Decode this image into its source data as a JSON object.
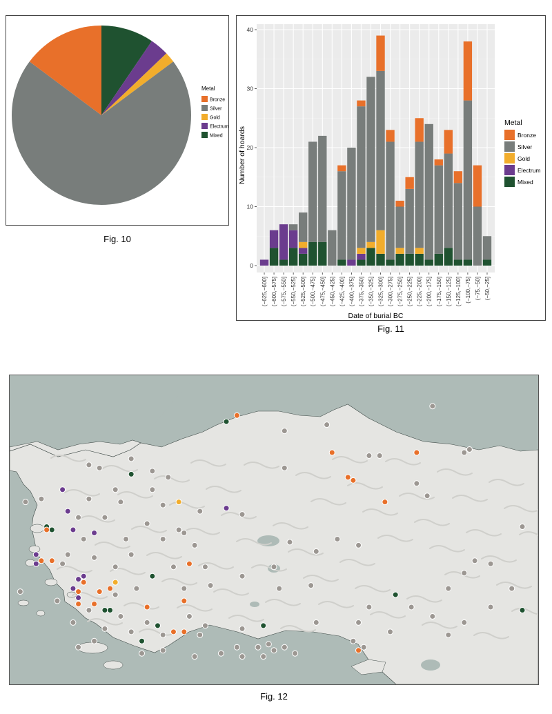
{
  "fig10": {
    "caption": "Fig. 10",
    "chart_data": {
      "type": "pie",
      "title": "",
      "legend_title": "Metal",
      "legend_position": "right",
      "slices": [
        {
          "label": "Mixed",
          "value": 9.5,
          "color": "#1f5230"
        },
        {
          "label": "Electrum",
          "value": 3.4,
          "color": "#6b3c8e"
        },
        {
          "label": "Gold",
          "value": 1.9,
          "color": "#f2ad2c"
        },
        {
          "label": "Silver",
          "value": 70.4,
          "color": "#787d7b"
        },
        {
          "label": "Bronze",
          "value": 14.8,
          "color": "#e8702a"
        }
      ],
      "legend_entries": [
        "Bronze",
        "Silver",
        "Gold",
        "Electrum",
        "Mixed"
      ]
    }
  },
  "fig11": {
    "caption": "Fig. 11",
    "chart_data": {
      "type": "bar",
      "stacked": true,
      "xlabel": "Date of burial BC",
      "ylabel": "Number of hoards",
      "ylim": [
        0,
        40
      ],
      "yticks": [
        0,
        10,
        20,
        30,
        40
      ],
      "grid": true,
      "legend_title": "Metal",
      "legend_position": "right",
      "categories": [
        "(−625,−600]",
        "(−600,−575]",
        "(−575,−550]",
        "(−550,−525]",
        "(−525,−500]",
        "(−500,−475]",
        "(−475,−450]",
        "(−450,−425]",
        "(−425,−400]",
        "(−400,−375]",
        "(−375,−350]",
        "(−350,−325]",
        "(−325,−300]",
        "(−300,−275]",
        "(−275,−250]",
        "(−250,−225]",
        "(−225,−200]",
        "(−200,−175]",
        "(−175,−150]",
        "(−150,−125]",
        "(−125,−100]",
        "(−100,−75]",
        "(−75,−50]",
        "(−50,−25]"
      ],
      "series": [
        {
          "name": "Mixed",
          "color": "#1f5230",
          "values": [
            0,
            3,
            1,
            3,
            2,
            4,
            4,
            0,
            1,
            0,
            1,
            3,
            2,
            1,
            2,
            2,
            2,
            1,
            2,
            3,
            1,
            1,
            0,
            1
          ]
        },
        {
          "name": "Electrum",
          "color": "#6b3c8e",
          "values": [
            1,
            3,
            6,
            3,
            1,
            0,
            0,
            0,
            0,
            1,
            1,
            0,
            0,
            0,
            0,
            0,
            0,
            0,
            0,
            0,
            0,
            0,
            0,
            0
          ]
        },
        {
          "name": "Gold",
          "color": "#f2ad2c",
          "values": [
            0,
            0,
            0,
            0,
            1,
            0,
            0,
            0,
            0,
            0,
            1,
            1,
            4,
            0,
            1,
            0,
            1,
            0,
            0,
            0,
            0,
            0,
            0,
            0
          ]
        },
        {
          "name": "Silver",
          "color": "#787d7b",
          "values": [
            0,
            0,
            0,
            1,
            5,
            17,
            18,
            6,
            15,
            19,
            24,
            28,
            27,
            20,
            7,
            11,
            18,
            23,
            15,
            16,
            13,
            27,
            10,
            4
          ]
        },
        {
          "name": "Bronze",
          "color": "#e8702a",
          "values": [
            0,
            0,
            0,
            0,
            0,
            0,
            0,
            0,
            1,
            0,
            1,
            0,
            6,
            2,
            1,
            2,
            4,
            0,
            1,
            4,
            2,
            10,
            7,
            0
          ]
        }
      ],
      "legend_entries": [
        "Bronze",
        "Silver",
        "Gold",
        "Electrum",
        "Mixed"
      ]
    }
  },
  "fig12": {
    "caption": "Fig. 12",
    "type": "map",
    "colors": {
      "sea": "#aebbb7",
      "land": "#e5e5e2",
      "lake": "#aebbb7",
      "relief": "#cfcfcb"
    },
    "points": [
      {
        "lon": 0.8,
        "lat": 0.1,
        "metal": "Silver"
      },
      {
        "lon": 0.43,
        "lat": 0.13,
        "metal": "Bronze"
      },
      {
        "lon": 0.41,
        "lat": 0.15,
        "metal": "Mixed"
      },
      {
        "lon": 0.61,
        "lat": 0.25,
        "metal": "Bronze"
      },
      {
        "lon": 0.77,
        "lat": 0.25,
        "metal": "Bronze"
      },
      {
        "lon": 0.64,
        "lat": 0.33,
        "metal": "Bronze"
      },
      {
        "lon": 0.65,
        "lat": 0.34,
        "metal": "Bronze"
      },
      {
        "lon": 0.71,
        "lat": 0.41,
        "metal": "Bronze"
      },
      {
        "lon": 0.32,
        "lat": 0.41,
        "metal": "Gold"
      },
      {
        "lon": 0.23,
        "lat": 0.32,
        "metal": "Mixed"
      },
      {
        "lon": 0.1,
        "lat": 0.37,
        "metal": "Electrum"
      },
      {
        "lon": 0.41,
        "lat": 0.43,
        "metal": "Electrum"
      },
      {
        "lon": 0.11,
        "lat": 0.44,
        "metal": "Electrum"
      },
      {
        "lon": 0.07,
        "lat": 0.49,
        "metal": "Mixed"
      },
      {
        "lon": 0.08,
        "lat": 0.5,
        "metal": "Mixed"
      },
      {
        "lon": 0.07,
        "lat": 0.5,
        "metal": "Bronze"
      },
      {
        "lon": 0.12,
        "lat": 0.5,
        "metal": "Electrum"
      },
      {
        "lon": 0.05,
        "lat": 0.58,
        "metal": "Electrum"
      },
      {
        "lon": 0.06,
        "lat": 0.6,
        "metal": "Bronze"
      },
      {
        "lon": 0.08,
        "lat": 0.6,
        "metal": "Bronze"
      },
      {
        "lon": 0.05,
        "lat": 0.61,
        "metal": "Electrum"
      },
      {
        "lon": 0.16,
        "lat": 0.51,
        "metal": "Electrum"
      },
      {
        "lon": 0.34,
        "lat": 0.61,
        "metal": "Bronze"
      },
      {
        "lon": 0.27,
        "lat": 0.65,
        "metal": "Mixed"
      },
      {
        "lon": 0.13,
        "lat": 0.66,
        "metal": "Electrum"
      },
      {
        "lon": 0.14,
        "lat": 0.65,
        "metal": "Electrum"
      },
      {
        "lon": 0.14,
        "lat": 0.67,
        "metal": "Bronze"
      },
      {
        "lon": 0.12,
        "lat": 0.69,
        "metal": "Electrum"
      },
      {
        "lon": 0.13,
        "lat": 0.7,
        "metal": "Bronze"
      },
      {
        "lon": 0.13,
        "lat": 0.72,
        "metal": "Electrum"
      },
      {
        "lon": 0.13,
        "lat": 0.74,
        "metal": "Bronze"
      },
      {
        "lon": 0.17,
        "lat": 0.7,
        "metal": "Bronze"
      },
      {
        "lon": 0.2,
        "lat": 0.67,
        "metal": "Gold"
      },
      {
        "lon": 0.19,
        "lat": 0.69,
        "metal": "Bronze"
      },
      {
        "lon": 0.16,
        "lat": 0.74,
        "metal": "Bronze"
      },
      {
        "lon": 0.26,
        "lat": 0.75,
        "metal": "Bronze"
      },
      {
        "lon": 0.18,
        "lat": 0.76,
        "metal": "Mixed"
      },
      {
        "lon": 0.19,
        "lat": 0.76,
        "metal": "Mixed"
      },
      {
        "lon": 0.33,
        "lat": 0.73,
        "metal": "Bronze"
      },
      {
        "lon": 0.28,
        "lat": 0.81,
        "metal": "Mixed"
      },
      {
        "lon": 0.31,
        "lat": 0.83,
        "metal": "Bronze"
      },
      {
        "lon": 0.33,
        "lat": 0.83,
        "metal": "Bronze"
      },
      {
        "lon": 0.25,
        "lat": 0.86,
        "metal": "Mixed"
      },
      {
        "lon": 0.48,
        "lat": 0.81,
        "metal": "Mixed"
      },
      {
        "lon": 0.73,
        "lat": 0.71,
        "metal": "Mixed"
      },
      {
        "lon": 0.97,
        "lat": 0.76,
        "metal": "Mixed"
      },
      {
        "lon": 0.66,
        "lat": 0.89,
        "metal": "Bronze"
      },
      {
        "lon": 0.6,
        "lat": 0.16,
        "metal": "Silver"
      },
      {
        "lon": 0.52,
        "lat": 0.18,
        "metal": "Silver"
      },
      {
        "lon": 0.23,
        "lat": 0.27,
        "metal": "Silver"
      },
      {
        "lon": 0.15,
        "lat": 0.29,
        "metal": "Silver"
      },
      {
        "lon": 0.17,
        "lat": 0.3,
        "metal": "Silver"
      },
      {
        "lon": 0.27,
        "lat": 0.31,
        "metal": "Silver"
      },
      {
        "lon": 0.3,
        "lat": 0.33,
        "metal": "Silver"
      },
      {
        "lon": 0.2,
        "lat": 0.37,
        "metal": "Silver"
      },
      {
        "lon": 0.27,
        "lat": 0.37,
        "metal": "Silver"
      },
      {
        "lon": 0.15,
        "lat": 0.4,
        "metal": "Silver"
      },
      {
        "lon": 0.21,
        "lat": 0.41,
        "metal": "Silver"
      },
      {
        "lon": 0.29,
        "lat": 0.42,
        "metal": "Silver"
      },
      {
        "lon": 0.36,
        "lat": 0.44,
        "metal": "Silver"
      },
      {
        "lon": 0.44,
        "lat": 0.45,
        "metal": "Silver"
      },
      {
        "lon": 0.52,
        "lat": 0.3,
        "metal": "Silver"
      },
      {
        "lon": 0.68,
        "lat": 0.26,
        "metal": "Silver"
      },
      {
        "lon": 0.7,
        "lat": 0.26,
        "metal": "Silver"
      },
      {
        "lon": 0.86,
        "lat": 0.25,
        "metal": "Silver"
      },
      {
        "lon": 0.87,
        "lat": 0.24,
        "metal": "Silver"
      },
      {
        "lon": 0.79,
        "lat": 0.39,
        "metal": "Silver"
      },
      {
        "lon": 0.97,
        "lat": 0.49,
        "metal": "Silver"
      },
      {
        "lon": 0.13,
        "lat": 0.46,
        "metal": "Silver"
      },
      {
        "lon": 0.18,
        "lat": 0.46,
        "metal": "Silver"
      },
      {
        "lon": 0.26,
        "lat": 0.48,
        "metal": "Silver"
      },
      {
        "lon": 0.32,
        "lat": 0.5,
        "metal": "Silver"
      },
      {
        "lon": 0.33,
        "lat": 0.51,
        "metal": "Silver"
      },
      {
        "lon": 0.14,
        "lat": 0.53,
        "metal": "Silver"
      },
      {
        "lon": 0.22,
        "lat": 0.53,
        "metal": "Silver"
      },
      {
        "lon": 0.29,
        "lat": 0.53,
        "metal": "Silver"
      },
      {
        "lon": 0.35,
        "lat": 0.55,
        "metal": "Silver"
      },
      {
        "lon": 0.53,
        "lat": 0.54,
        "metal": "Silver"
      },
      {
        "lon": 0.62,
        "lat": 0.53,
        "metal": "Silver"
      },
      {
        "lon": 0.58,
        "lat": 0.57,
        "metal": "Silver"
      },
      {
        "lon": 0.66,
        "lat": 0.55,
        "metal": "Silver"
      },
      {
        "lon": 0.23,
        "lat": 0.58,
        "metal": "Silver"
      },
      {
        "lon": 0.16,
        "lat": 0.59,
        "metal": "Silver"
      },
      {
        "lon": 0.11,
        "lat": 0.58,
        "metal": "Silver"
      },
      {
        "lon": 0.1,
        "lat": 0.61,
        "metal": "Silver"
      },
      {
        "lon": 0.2,
        "lat": 0.62,
        "metal": "Silver"
      },
      {
        "lon": 0.31,
        "lat": 0.62,
        "metal": "Silver"
      },
      {
        "lon": 0.37,
        "lat": 0.62,
        "metal": "Silver"
      },
      {
        "lon": 0.44,
        "lat": 0.65,
        "metal": "Silver"
      },
      {
        "lon": 0.5,
        "lat": 0.62,
        "metal": "Silver"
      },
      {
        "lon": 0.38,
        "lat": 0.68,
        "metal": "Silver"
      },
      {
        "lon": 0.33,
        "lat": 0.69,
        "metal": "Silver"
      },
      {
        "lon": 0.24,
        "lat": 0.69,
        "metal": "Silver"
      },
      {
        "lon": 0.2,
        "lat": 0.71,
        "metal": "Silver"
      },
      {
        "lon": 0.51,
        "lat": 0.69,
        "metal": "Silver"
      },
      {
        "lon": 0.57,
        "lat": 0.68,
        "metal": "Silver"
      },
      {
        "lon": 0.83,
        "lat": 0.69,
        "metal": "Silver"
      },
      {
        "lon": 0.95,
        "lat": 0.69,
        "metal": "Silver"
      },
      {
        "lon": 0.68,
        "lat": 0.75,
        "metal": "Silver"
      },
      {
        "lon": 0.76,
        "lat": 0.75,
        "metal": "Silver"
      },
      {
        "lon": 0.91,
        "lat": 0.75,
        "metal": "Silver"
      },
      {
        "lon": 0.15,
        "lat": 0.76,
        "metal": "Silver"
      },
      {
        "lon": 0.21,
        "lat": 0.78,
        "metal": "Silver"
      },
      {
        "lon": 0.26,
        "lat": 0.8,
        "metal": "Silver"
      },
      {
        "lon": 0.34,
        "lat": 0.78,
        "metal": "Silver"
      },
      {
        "lon": 0.37,
        "lat": 0.81,
        "metal": "Silver"
      },
      {
        "lon": 0.44,
        "lat": 0.82,
        "metal": "Silver"
      },
      {
        "lon": 0.58,
        "lat": 0.8,
        "metal": "Silver"
      },
      {
        "lon": 0.66,
        "lat": 0.8,
        "metal": "Silver"
      },
      {
        "lon": 0.8,
        "lat": 0.78,
        "metal": "Silver"
      },
      {
        "lon": 0.86,
        "lat": 0.8,
        "metal": "Silver"
      },
      {
        "lon": 0.12,
        "lat": 0.8,
        "metal": "Silver"
      },
      {
        "lon": 0.23,
        "lat": 0.83,
        "metal": "Silver"
      },
      {
        "lon": 0.29,
        "lat": 0.84,
        "metal": "Silver"
      },
      {
        "lon": 0.36,
        "lat": 0.84,
        "metal": "Silver"
      },
      {
        "lon": 0.43,
        "lat": 0.88,
        "metal": "Silver"
      },
      {
        "lon": 0.47,
        "lat": 0.88,
        "metal": "Silver"
      },
      {
        "lon": 0.49,
        "lat": 0.87,
        "metal": "Silver"
      },
      {
        "lon": 0.5,
        "lat": 0.89,
        "metal": "Silver"
      },
      {
        "lon": 0.52,
        "lat": 0.88,
        "metal": "Silver"
      },
      {
        "lon": 0.65,
        "lat": 0.86,
        "metal": "Silver"
      },
      {
        "lon": 0.72,
        "lat": 0.83,
        "metal": "Silver"
      },
      {
        "lon": 0.83,
        "lat": 0.84,
        "metal": "Silver"
      },
      {
        "lon": 0.25,
        "lat": 0.9,
        "metal": "Silver"
      },
      {
        "lon": 0.29,
        "lat": 0.89,
        "metal": "Silver"
      },
      {
        "lon": 0.35,
        "lat": 0.91,
        "metal": "Silver"
      },
      {
        "lon": 0.4,
        "lat": 0.9,
        "metal": "Silver"
      },
      {
        "lon": 0.44,
        "lat": 0.91,
        "metal": "Silver"
      },
      {
        "lon": 0.48,
        "lat": 0.91,
        "metal": "Silver"
      },
      {
        "lon": 0.54,
        "lat": 0.9,
        "metal": "Silver"
      },
      {
        "lon": 0.67,
        "lat": 0.88,
        "metal": "Silver"
      },
      {
        "lon": 0.18,
        "lat": 0.82,
        "metal": "Silver"
      },
      {
        "lon": 0.16,
        "lat": 0.86,
        "metal": "Silver"
      },
      {
        "lon": 0.13,
        "lat": 0.88,
        "metal": "Silver"
      },
      {
        "lon": 0.03,
        "lat": 0.41,
        "metal": "Silver"
      },
      {
        "lon": 0.06,
        "lat": 0.4,
        "metal": "Silver"
      },
      {
        "lon": 0.02,
        "lat": 0.7,
        "metal": "Silver"
      },
      {
        "lon": 0.09,
        "lat": 0.73,
        "metal": "Silver"
      },
      {
        "lon": 0.91,
        "lat": 0.61,
        "metal": "Silver"
      },
      {
        "lon": 0.86,
        "lat": 0.64,
        "metal": "Silver"
      },
      {
        "lon": 0.77,
        "lat": 0.35,
        "metal": "Silver"
      },
      {
        "lon": 0.88,
        "lat": 0.6,
        "metal": "Silver"
      }
    ]
  }
}
